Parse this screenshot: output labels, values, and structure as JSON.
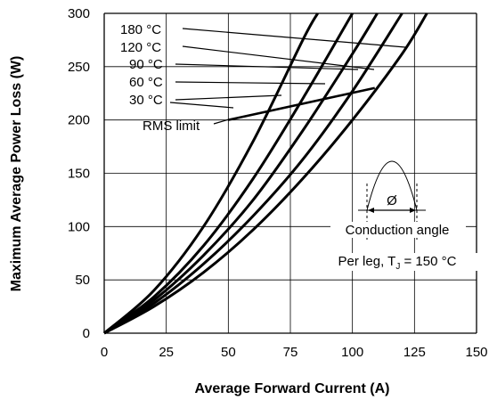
{
  "chart_data": {
    "type": "line",
    "xlabel": "Average Forward Current (A)",
    "ylabel": "Maximum  Average Power Loss (W)",
    "xlim": [
      0,
      150
    ],
    "ylim": [
      0,
      300
    ],
    "x_ticks": [
      "0",
      "25",
      "50",
      "75",
      "100",
      "125",
      "150"
    ],
    "y_ticks": [
      "0",
      "50",
      "100",
      "150",
      "200",
      "250",
      "300"
    ],
    "grid": true,
    "series": [
      {
        "name": "180 °C",
        "points": [
          [
            0,
            0
          ],
          [
            20,
            40
          ],
          [
            40,
            100
          ],
          [
            60,
            180
          ],
          [
            80,
            275
          ],
          [
            86,
            300
          ]
        ]
      },
      {
        "name": "120 °C",
        "points": [
          [
            0,
            0
          ],
          [
            20,
            34
          ],
          [
            40,
            82
          ],
          [
            60,
            145
          ],
          [
            80,
            220
          ],
          [
            100,
            300
          ]
        ]
      },
      {
        "name": "90 °C",
        "points": [
          [
            0,
            0
          ],
          [
            20,
            31
          ],
          [
            40,
            73
          ],
          [
            60,
            125
          ],
          [
            80,
            190
          ],
          [
            100,
            262
          ],
          [
            110,
            300
          ]
        ]
      },
      {
        "name": "60 °C",
        "points": [
          [
            0,
            0
          ],
          [
            20,
            28
          ],
          [
            40,
            65
          ],
          [
            60,
            110
          ],
          [
            80,
            163
          ],
          [
            100,
            227
          ],
          [
            120,
            300
          ]
        ]
      },
      {
        "name": "30 °C",
        "points": [
          [
            0,
            0
          ],
          [
            20,
            25
          ],
          [
            40,
            57
          ],
          [
            60,
            97
          ],
          [
            80,
            145
          ],
          [
            100,
            200
          ],
          [
            120,
            262
          ],
          [
            130,
            300
          ]
        ]
      }
    ],
    "rms_limit": {
      "label": "RMS limit",
      "points": [
        [
          50,
          200
        ],
        [
          109,
          230
        ]
      ]
    },
    "annotations": {
      "conduction_angle": "Conduction angle",
      "phi_symbol": "Ø",
      "per_leg_prefix": "Per leg, T",
      "per_leg_subscript": "J",
      "per_leg_suffix": " = 150 °C"
    }
  }
}
